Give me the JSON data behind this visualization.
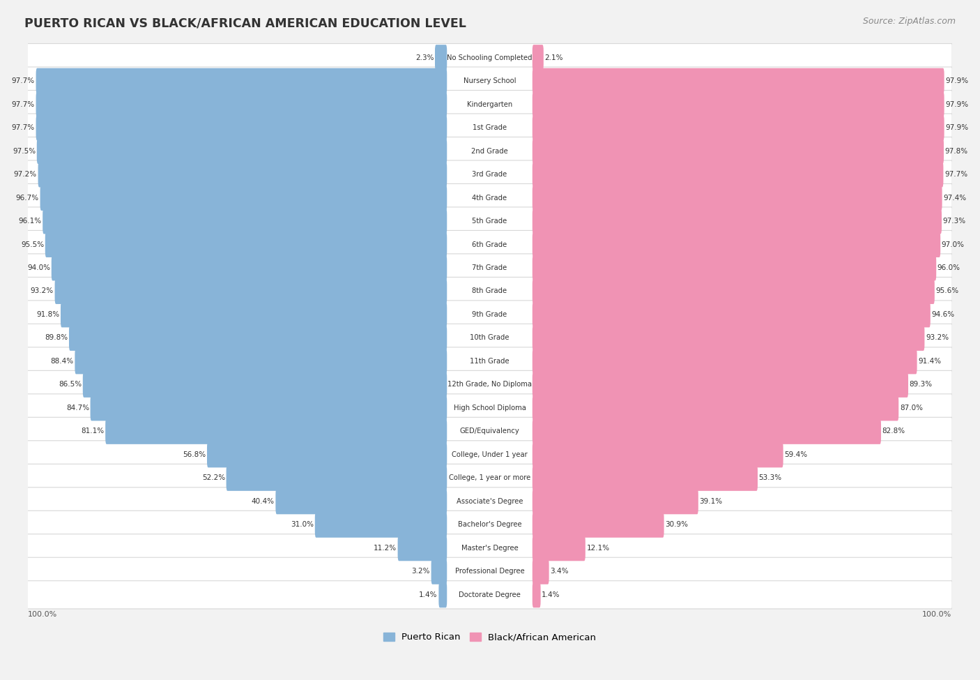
{
  "title": "PUERTO RICAN VS BLACK/AFRICAN AMERICAN EDUCATION LEVEL",
  "source": "Source: ZipAtlas.com",
  "categories": [
    "No Schooling Completed",
    "Nursery School",
    "Kindergarten",
    "1st Grade",
    "2nd Grade",
    "3rd Grade",
    "4th Grade",
    "5th Grade",
    "6th Grade",
    "7th Grade",
    "8th Grade",
    "9th Grade",
    "10th Grade",
    "11th Grade",
    "12th Grade, No Diploma",
    "High School Diploma",
    "GED/Equivalency",
    "College, Under 1 year",
    "College, 1 year or more",
    "Associate's Degree",
    "Bachelor's Degree",
    "Master's Degree",
    "Professional Degree",
    "Doctorate Degree"
  ],
  "puerto_rican": [
    2.3,
    97.7,
    97.7,
    97.7,
    97.5,
    97.2,
    96.7,
    96.1,
    95.5,
    94.0,
    93.2,
    91.8,
    89.8,
    88.4,
    86.5,
    84.7,
    81.1,
    56.8,
    52.2,
    40.4,
    31.0,
    11.2,
    3.2,
    1.4
  ],
  "black_african": [
    2.1,
    97.9,
    97.9,
    97.9,
    97.8,
    97.7,
    97.4,
    97.3,
    97.0,
    96.0,
    95.6,
    94.6,
    93.2,
    91.4,
    89.3,
    87.0,
    82.8,
    59.4,
    53.3,
    39.1,
    30.9,
    12.1,
    3.4,
    1.4
  ],
  "puerto_rican_color": "#88b4d8",
  "black_african_color": "#f093b4",
  "background_color": "#f2f2f2",
  "row_bg_color": "#ffffff",
  "legend_labels": [
    "Puerto Rican",
    "Black/African American"
  ]
}
